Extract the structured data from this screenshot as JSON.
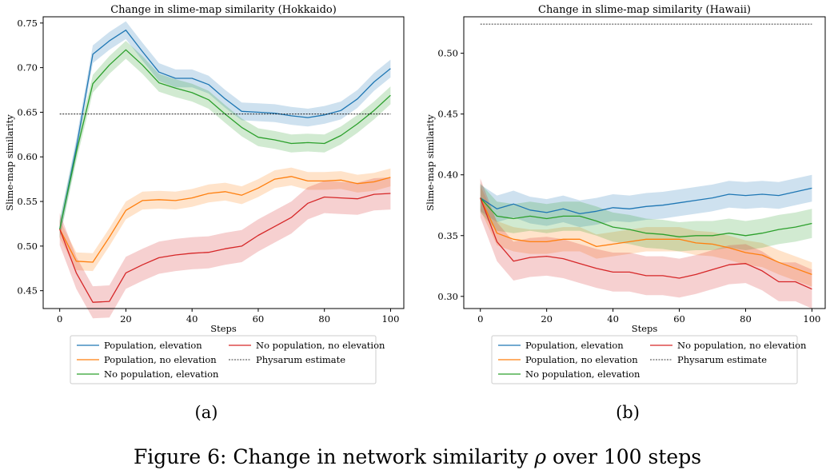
{
  "figure": {
    "caption_label": "Figure 6:",
    "caption_text": "Change in network similarity",
    "caption_symbol": "ρ",
    "caption_rest": "over 100 steps"
  },
  "chart_data": [
    {
      "type": "line",
      "panel_tag": "(a)",
      "title": "Change in slime-map similarity (Hokkaido)",
      "xlabel": "Steps",
      "ylabel": "Slime-map similarity",
      "xlim": [
        -5,
        104
      ],
      "ylim": [
        0.43,
        0.757
      ],
      "xticks": [
        0,
        20,
        40,
        60,
        80,
        100
      ],
      "xtick_labels": [
        "0",
        "20",
        "40",
        "60",
        "80",
        "100"
      ],
      "yticks": [
        0.45,
        0.5,
        0.55,
        0.6,
        0.65,
        0.7,
        0.75
      ],
      "ytick_labels": [
        "0.45",
        "0.50",
        "0.55",
        "0.60",
        "0.65",
        "0.70",
        "0.75"
      ],
      "grid": false,
      "legend_placement": "below",
      "x": [
        0,
        5,
        10,
        15,
        20,
        25,
        30,
        35,
        40,
        45,
        50,
        55,
        60,
        65,
        70,
        75,
        80,
        85,
        90,
        95,
        100
      ],
      "series": [
        {
          "name": "Population, elevation",
          "color": "#1f77b4",
          "band": 0.01,
          "values": [
            0.519,
            0.61,
            0.715,
            0.73,
            0.742,
            0.718,
            0.695,
            0.688,
            0.688,
            0.681,
            0.665,
            0.651,
            0.65,
            0.649,
            0.646,
            0.644,
            0.647,
            0.652,
            0.665,
            0.684,
            0.699
          ]
        },
        {
          "name": "Population, no elevation",
          "color": "#ff7f0e",
          "band": 0.01,
          "values": [
            0.519,
            0.483,
            0.482,
            0.51,
            0.54,
            0.551,
            0.552,
            0.551,
            0.554,
            0.559,
            0.561,
            0.557,
            0.565,
            0.575,
            0.578,
            0.573,
            0.573,
            0.574,
            0.57,
            0.572,
            0.577
          ]
        },
        {
          "name": "No population, elevation",
          "color": "#2ca02c",
          "band": 0.01,
          "values": [
            0.519,
            0.605,
            0.682,
            0.703,
            0.72,
            0.703,
            0.683,
            0.677,
            0.672,
            0.664,
            0.648,
            0.633,
            0.622,
            0.619,
            0.615,
            0.616,
            0.615,
            0.624,
            0.637,
            0.652,
            0.669
          ]
        },
        {
          "name": "No population, no elevation",
          "color": "#d62728",
          "band": 0.018,
          "values": [
            0.519,
            0.47,
            0.437,
            0.438,
            0.47,
            0.479,
            0.487,
            0.49,
            0.492,
            0.493,
            0.497,
            0.5,
            0.512,
            0.522,
            0.532,
            0.548,
            0.555,
            0.554,
            0.553,
            0.558,
            0.559
          ]
        }
      ],
      "reference": {
        "name": "Physarum estimate",
        "value": 0.648,
        "color": "#000000"
      }
    },
    {
      "type": "line",
      "panel_tag": "(b)",
      "title": "Change in slime-map similarity (Hawaii)",
      "xlabel": "Steps",
      "ylabel": "Slime-map similarity",
      "xlim": [
        -5,
        104
      ],
      "ylim": [
        0.29,
        0.53
      ],
      "xticks": [
        0,
        20,
        40,
        60,
        80,
        100
      ],
      "xtick_labels": [
        "0",
        "20",
        "40",
        "60",
        "80",
        "100"
      ],
      "yticks": [
        0.3,
        0.35,
        0.4,
        0.45,
        0.5
      ],
      "ytick_labels": [
        "0.30",
        "0.35",
        "0.40",
        "0.45",
        "0.50"
      ],
      "grid": false,
      "legend_placement": "below",
      "x": [
        0,
        5,
        10,
        15,
        20,
        25,
        30,
        35,
        40,
        45,
        50,
        55,
        60,
        65,
        70,
        75,
        80,
        85,
        90,
        95,
        100
      ],
      "series": [
        {
          "name": "Population, elevation",
          "color": "#1f77b4",
          "band": 0.011,
          "values": [
            0.381,
            0.372,
            0.376,
            0.371,
            0.369,
            0.372,
            0.368,
            0.37,
            0.373,
            0.372,
            0.374,
            0.375,
            0.377,
            0.379,
            0.381,
            0.384,
            0.383,
            0.384,
            0.383,
            0.386,
            0.389
          ]
        },
        {
          "name": "Population, no elevation",
          "color": "#ff7f0e",
          "band": 0.01,
          "values": [
            0.381,
            0.352,
            0.347,
            0.345,
            0.345,
            0.347,
            0.347,
            0.341,
            0.343,
            0.345,
            0.347,
            0.347,
            0.347,
            0.344,
            0.343,
            0.34,
            0.336,
            0.334,
            0.328,
            0.323,
            0.318
          ]
        },
        {
          "name": "No population, elevation",
          "color": "#2ca02c",
          "band": 0.012,
          "values": [
            0.381,
            0.366,
            0.364,
            0.366,
            0.364,
            0.366,
            0.366,
            0.362,
            0.357,
            0.355,
            0.352,
            0.351,
            0.349,
            0.35,
            0.35,
            0.352,
            0.35,
            0.352,
            0.355,
            0.357,
            0.36
          ]
        },
        {
          "name": "No population, no elevation",
          "color": "#d62728",
          "band": 0.016,
          "values": [
            0.381,
            0.345,
            0.329,
            0.332,
            0.333,
            0.331,
            0.327,
            0.323,
            0.32,
            0.32,
            0.317,
            0.317,
            0.315,
            0.318,
            0.322,
            0.326,
            0.327,
            0.321,
            0.312,
            0.312,
            0.306
          ]
        }
      ],
      "reference": {
        "name": "Physarum estimate",
        "value": 0.524,
        "color": "#000000"
      }
    }
  ]
}
